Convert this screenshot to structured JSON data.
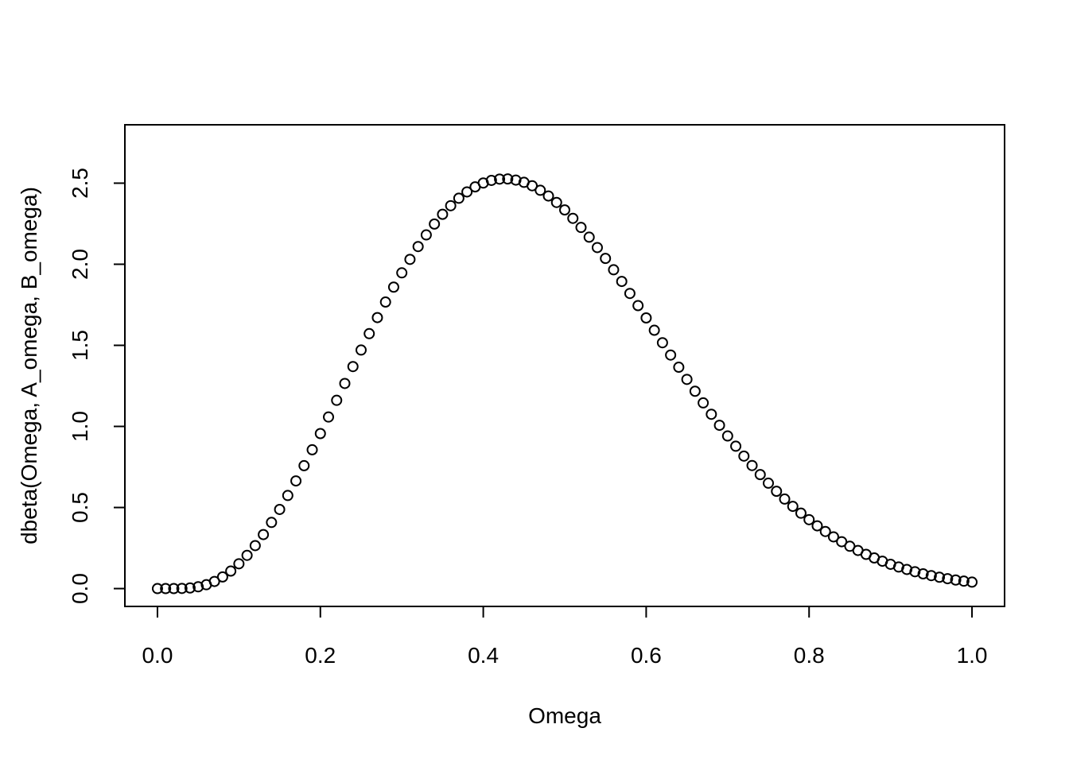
{
  "chart_data": {
    "type": "scatter",
    "title": "",
    "xlabel": "Omega",
    "ylabel": "dbeta(Omega, A_omega, B_omega)",
    "xlim": [
      -0.04,
      1.04
    ],
    "ylim": [
      -0.11,
      2.86
    ],
    "grid": false,
    "marker": "open-circle",
    "x_ticks": [
      0.0,
      0.2,
      0.4,
      0.6,
      0.8,
      1.0
    ],
    "x_tick_labels": [
      "0.0",
      "0.2",
      "0.4",
      "0.6",
      "0.8",
      "1.0"
    ],
    "y_ticks": [
      0.0,
      0.5,
      1.0,
      1.5,
      2.0,
      2.5
    ],
    "y_tick_labels": [
      "0.0",
      "0.5",
      "1.0",
      "1.5",
      "2.0",
      "2.5"
    ],
    "x": [
      0.0,
      0.01,
      0.02,
      0.03,
      0.04,
      0.05,
      0.06,
      0.07,
      0.08,
      0.09,
      0.1,
      0.11,
      0.12,
      0.13,
      0.14,
      0.15,
      0.16,
      0.17,
      0.18,
      0.19,
      0.2,
      0.21,
      0.22,
      0.23,
      0.24,
      0.25,
      0.26,
      0.27,
      0.28,
      0.29,
      0.3,
      0.31,
      0.32,
      0.33,
      0.34,
      0.35,
      0.36,
      0.37,
      0.38,
      0.39,
      0.4,
      0.41,
      0.42,
      0.43,
      0.44,
      0.45,
      0.46,
      0.47,
      0.48,
      0.49,
      0.5,
      0.51,
      0.52,
      0.53,
      0.54,
      0.55,
      0.56,
      0.57,
      0.58,
      0.59,
      0.6,
      0.61,
      0.62,
      0.63,
      0.64,
      0.65,
      0.66,
      0.67,
      0.68,
      0.69,
      0.7,
      0.71,
      0.72,
      0.73,
      0.74,
      0.75,
      0.76,
      0.77,
      0.78,
      0.79,
      0.8,
      0.81,
      0.82,
      0.83,
      0.84,
      0.85,
      0.86,
      0.87,
      0.88,
      0.89,
      0.9,
      0.91,
      0.92,
      0.93,
      0.94,
      0.95,
      0.96,
      0.97,
      0.98,
      0.99,
      1.0
    ],
    "y": [
      0.0,
      0.0,
      0.0001,
      0.001,
      0.004,
      0.011,
      0.024,
      0.044,
      0.072,
      0.108,
      0.153,
      0.205,
      0.265,
      0.333,
      0.408,
      0.488,
      0.574,
      0.664,
      0.758,
      0.856,
      0.956,
      1.058,
      1.161,
      1.265,
      1.369,
      1.471,
      1.572,
      1.671,
      1.767,
      1.859,
      1.947,
      2.03,
      2.109,
      2.181,
      2.248,
      2.308,
      2.361,
      2.407,
      2.446,
      2.477,
      2.501,
      2.517,
      2.525,
      2.526,
      2.519,
      2.505,
      2.484,
      2.456,
      2.421,
      2.381,
      2.335,
      2.283,
      2.227,
      2.167,
      2.103,
      2.036,
      1.966,
      1.894,
      1.82,
      1.745,
      1.669,
      1.593,
      1.516,
      1.44,
      1.365,
      1.29,
      1.217,
      1.145,
      1.075,
      1.007,
      0.941,
      0.878,
      0.817,
      0.759,
      0.703,
      0.65,
      0.6,
      0.552,
      0.507,
      0.465,
      0.425,
      0.387,
      0.352,
      0.319,
      0.289,
      0.261,
      0.235,
      0.211,
      0.189,
      0.169,
      0.15,
      0.133,
      0.118,
      0.104,
      0.091,
      0.08,
      0.07,
      0.061,
      0.053,
      0.046,
      0.04
    ]
  }
}
